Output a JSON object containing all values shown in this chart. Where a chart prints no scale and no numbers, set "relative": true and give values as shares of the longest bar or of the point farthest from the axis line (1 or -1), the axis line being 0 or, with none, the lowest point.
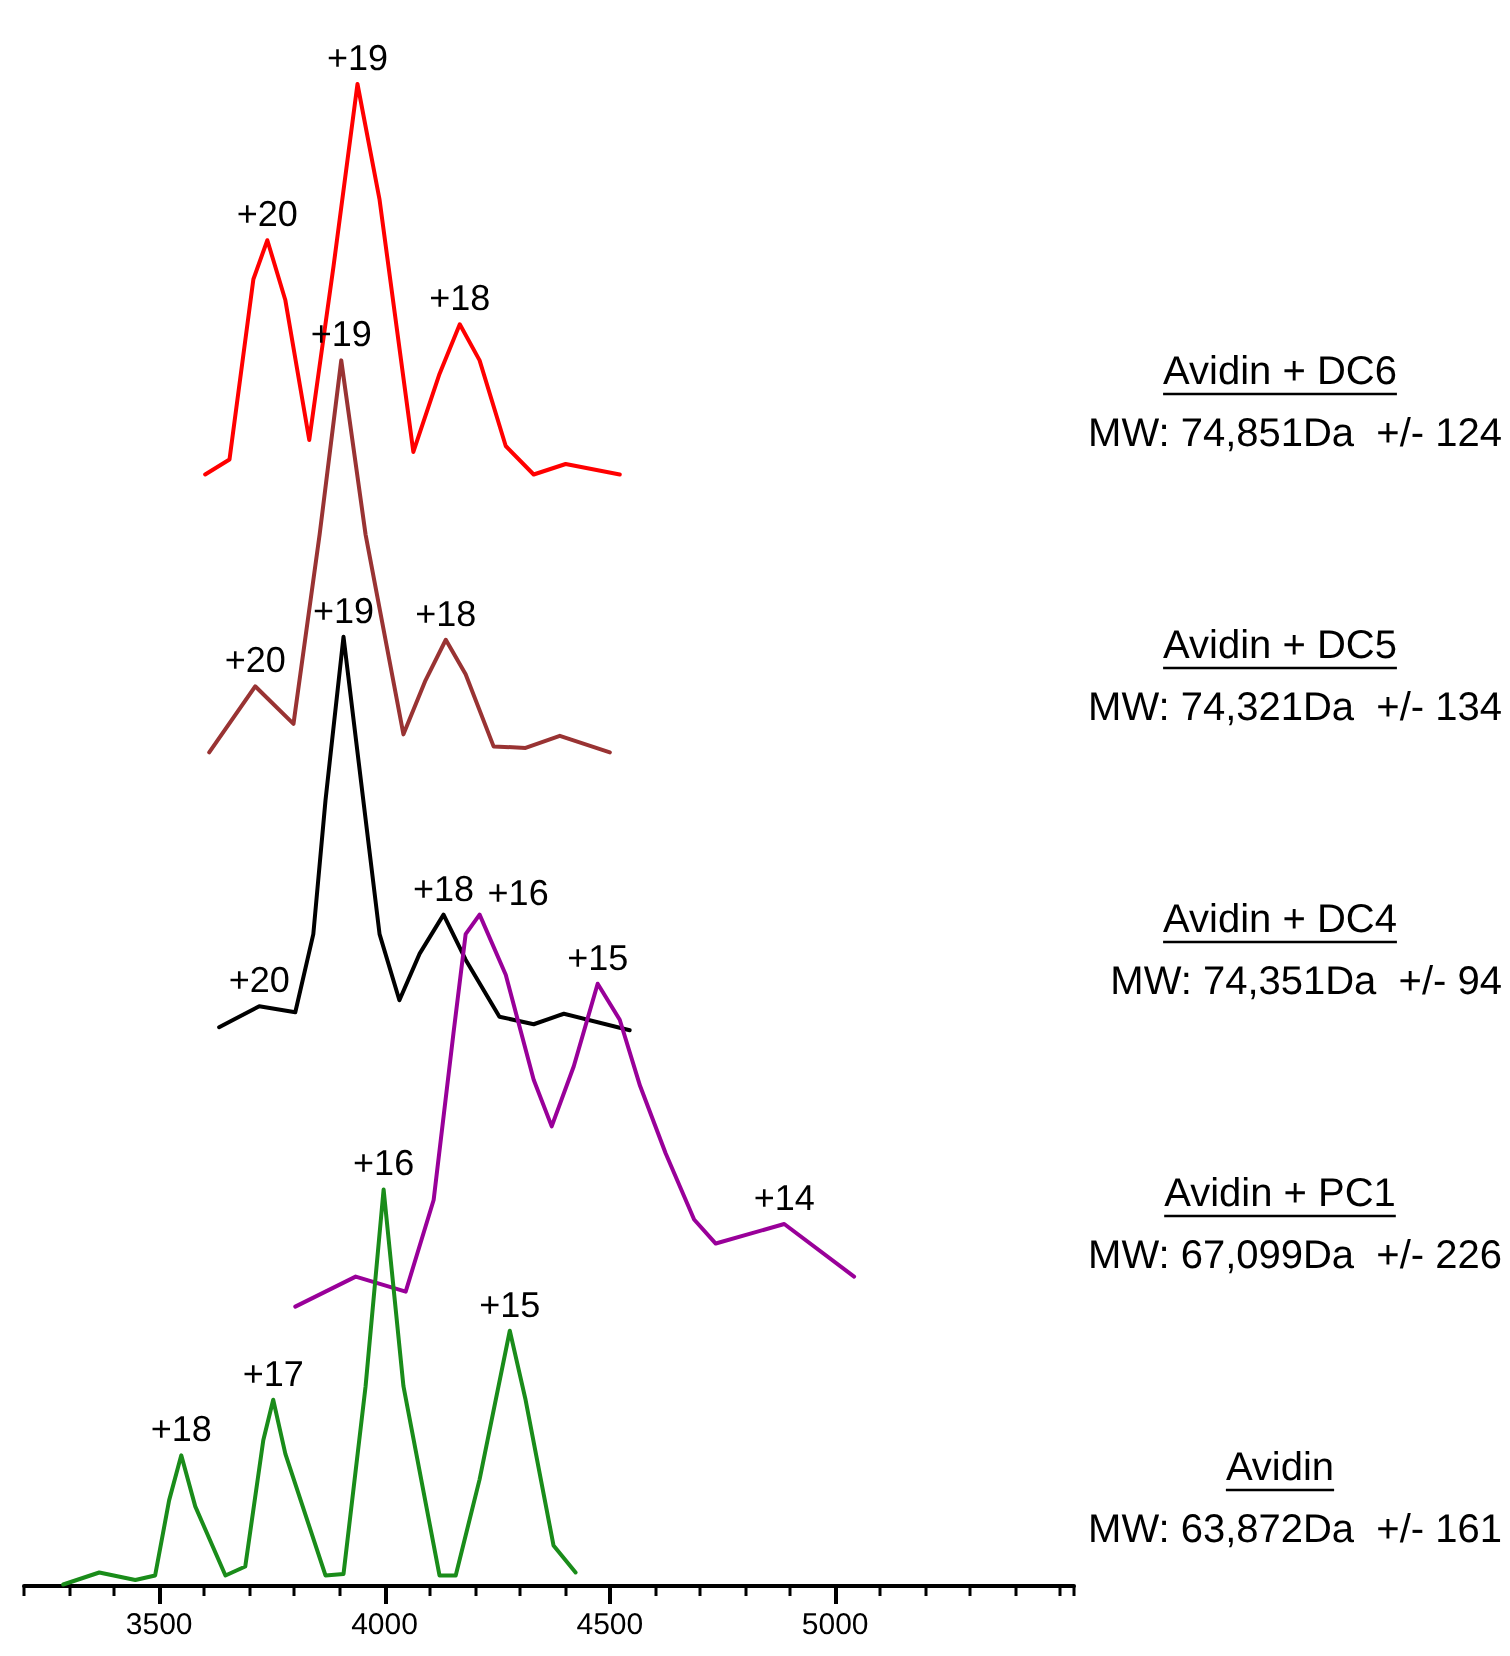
{
  "chart_data": {
    "type": "line",
    "relative": true,
    "xlim": [
      3200,
      5530
    ],
    "xticks": [
      3500,
      4000,
      4500,
      5000
    ],
    "grid": false,
    "legend": false,
    "marker": "none",
    "line_style": "solid",
    "series": [
      {
        "name": "Avidin + DC6",
        "color": "#ff0000",
        "x": [
          3602,
          3656,
          3709,
          3740,
          3780,
          3833,
          3887,
          3940,
          3989,
          4064,
          4122,
          4167,
          4211,
          4269,
          4331,
          4402,
          4522
        ],
        "values": [
          0.74,
          0.75,
          0.87,
          0.896,
          0.856,
          0.763,
          0.879,
          1.0,
          0.923,
          0.755,
          0.807,
          0.84,
          0.816,
          0.759,
          0.74,
          0.747,
          0.74
        ]
      },
      {
        "name": "Avidin + DC5",
        "color": "#993333",
        "x": [
          3611,
          3713,
          3798,
          3856,
          3904,
          3958,
          4042,
          4091,
          4136,
          4180,
          4242,
          4313,
          4389,
          4500
        ],
        "values": [
          0.555,
          0.599,
          0.574,
          0.7,
          0.816,
          0.7,
          0.567,
          0.603,
          0.63,
          0.607,
          0.559,
          0.558,
          0.566,
          0.555
        ]
      },
      {
        "name": "Avidin + DC4",
        "color": "#000000",
        "x": [
          3633,
          3722,
          3802,
          3842,
          3869,
          3909,
          3953,
          3989,
          4033,
          4078,
          4131,
          4180,
          4255,
          4331,
          4398,
          4544
        ],
        "values": [
          0.372,
          0.386,
          0.382,
          0.434,
          0.523,
          0.632,
          0.523,
          0.434,
          0.39,
          0.421,
          0.447,
          0.417,
          0.379,
          0.374,
          0.381,
          0.37
        ]
      },
      {
        "name": "Avidin + PC1",
        "color": "#990099",
        "x": [
          3802,
          3936,
          4047,
          4109,
          4153,
          4180,
          4211,
          4269,
          4331,
          4371,
          4420,
          4473,
          4522,
          4567,
          4624,
          4687,
          4735,
          4887,
          5042
        ],
        "values": [
          0.186,
          0.206,
          0.196,
          0.257,
          0.368,
          0.434,
          0.447,
          0.407,
          0.337,
          0.306,
          0.346,
          0.401,
          0.377,
          0.333,
          0.288,
          0.244,
          0.228,
          0.241,
          0.206
        ]
      },
      {
        "name": "Avidin",
        "color": "#1a8c1a",
        "x": [
          3287,
          3367,
          3447,
          3491,
          3522,
          3549,
          3580,
          3647,
          3691,
          3731,
          3753,
          3780,
          3869,
          3909,
          3958,
          3998,
          4042,
          4122,
          4158,
          4211,
          4278,
          4313,
          4375,
          4424
        ],
        "values": [
          0.001,
          0.009,
          0.004,
          0.007,
          0.057,
          0.087,
          0.053,
          0.007,
          0.013,
          0.097,
          0.124,
          0.088,
          0.007,
          0.008,
          0.133,
          0.264,
          0.133,
          0.007,
          0.007,
          0.071,
          0.17,
          0.124,
          0.027,
          0.009
        ]
      }
    ],
    "annotations": [
      {
        "text": "+20",
        "x": 3740,
        "y": 0.896
      },
      {
        "text": "+19",
        "x": 3940,
        "y": 1.0
      },
      {
        "text": "+18",
        "x": 4167,
        "y": 0.84
      },
      {
        "text": "+20",
        "x": 3713,
        "y": 0.599
      },
      {
        "text": "+19",
        "x": 3904,
        "y": 0.816
      },
      {
        "text": "+18",
        "x": 4136,
        "y": 0.63
      },
      {
        "text": "+20",
        "x": 3722,
        "y": 0.386
      },
      {
        "text": "+19",
        "x": 3909,
        "y": 0.632
      },
      {
        "text": "+18",
        "x": 4131,
        "y": 0.447
      },
      {
        "text": "+16",
        "x": 4211,
        "y": 0.447
      },
      {
        "text": "+15",
        "x": 4473,
        "y": 0.401
      },
      {
        "text": "+14",
        "x": 4887,
        "y": 0.241
      },
      {
        "text": "+18",
        "x": 3549,
        "y": 0.087
      },
      {
        "text": "+17",
        "x": 3753,
        "y": 0.124
      },
      {
        "text": "+16",
        "x": 3998,
        "y": 0.264
      },
      {
        "text": "+15",
        "x": 4278,
        "y": 0.17
      },
      "MW: 74,851Da  +/- 124",
      "MW: 74,321Da  +/- 134",
      "MW: 74,351Da  +/- 94",
      "MW: 67,099Da  +/- 226",
      "MW: 63,872Da  +/- 161"
    ]
  }
}
